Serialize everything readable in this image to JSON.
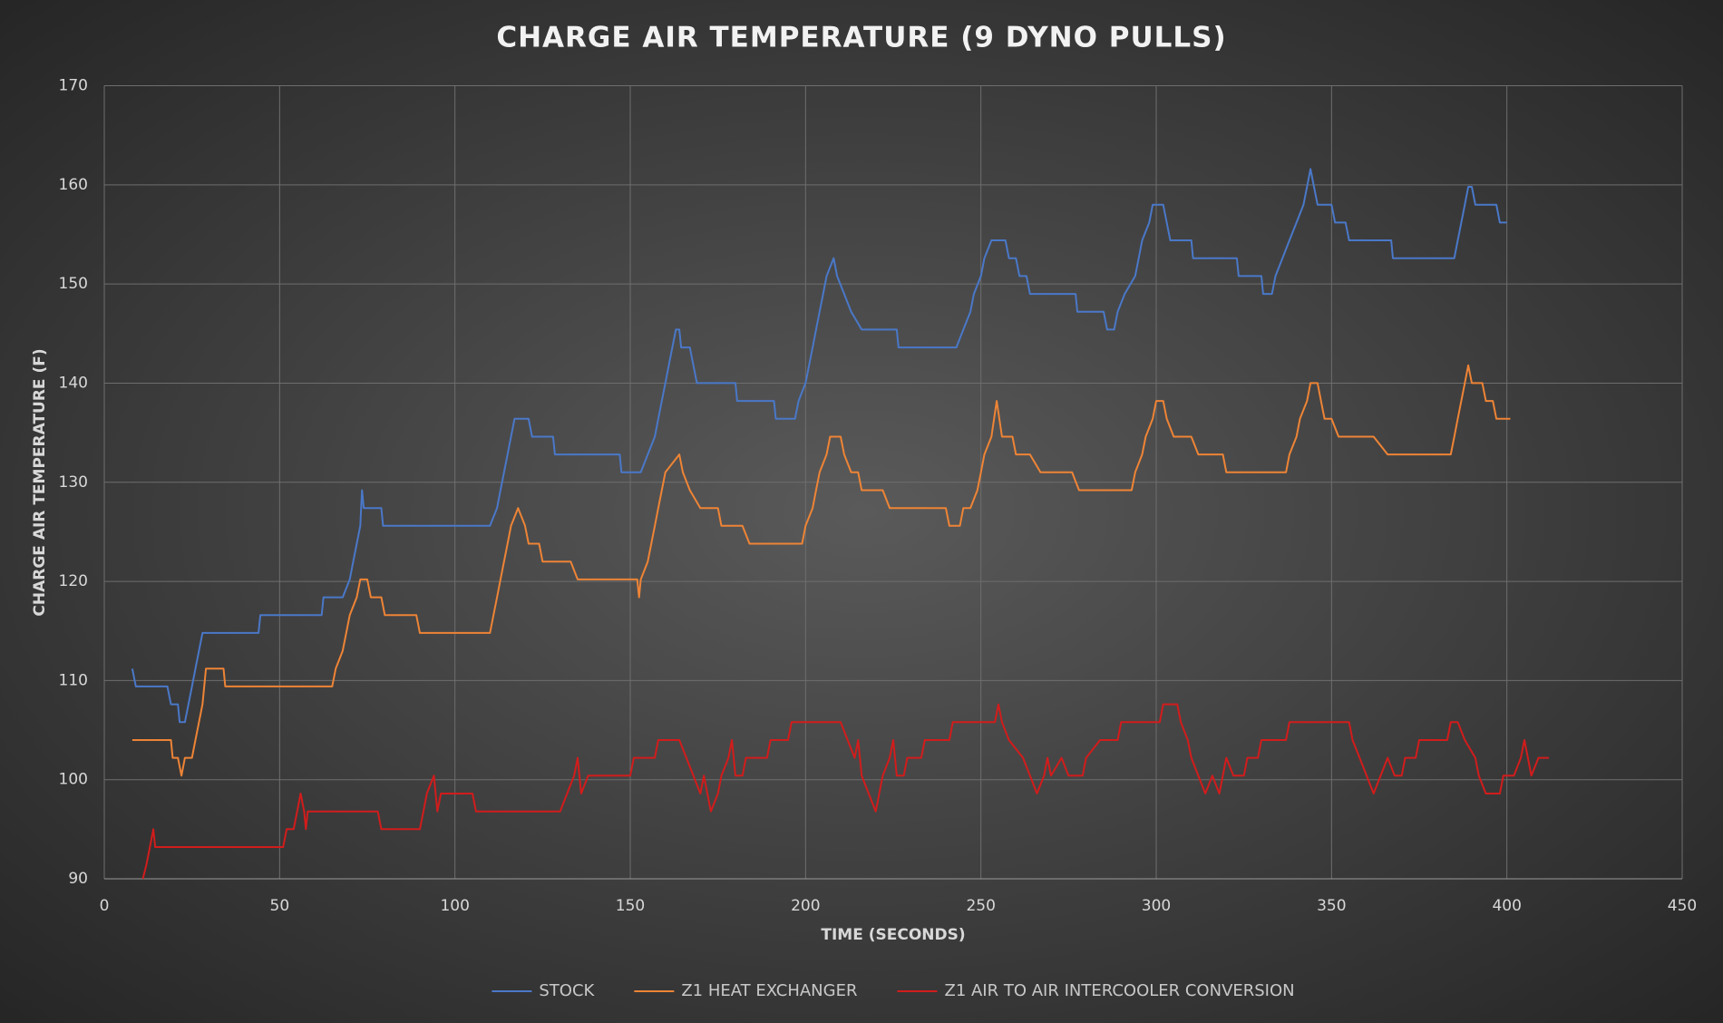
{
  "chart_data": {
    "type": "line",
    "title": "CHARGE AIR TEMPERATURE (9 DYNO PULLS)",
    "x_label": "TIME (SECONDS)",
    "y_label": "CHARGE AIR TEMPERATURE (F)",
    "xlim": [
      0,
      450
    ],
    "xticks": [
      0,
      50,
      100,
      150,
      200,
      250,
      300,
      350,
      400,
      450
    ],
    "ylim": [
      90,
      170
    ],
    "yticks": [
      90,
      100,
      110,
      120,
      130,
      140,
      150,
      160,
      170
    ],
    "grid": true,
    "legend": "bottom",
    "series": [
      {
        "name": "STOCK",
        "color": "#4a78c8",
        "x": [
          8,
          9,
          18,
          19,
          21,
          21.5,
          23,
          24,
          25,
          26,
          27,
          28,
          44,
          44.5,
          62,
          62.5,
          68,
          70,
          71,
          72,
          73,
          73.5,
          74,
          79,
          79.5,
          110,
          112,
          113,
          114,
          115,
          116,
          117,
          121,
          122,
          128,
          128.5,
          147,
          147.5,
          153,
          155,
          157,
          158,
          159,
          160,
          161,
          162,
          163,
          164,
          164.5,
          167,
          168,
          169,
          180,
          180.5,
          191,
          191.5,
          197,
          198,
          200,
          201,
          202,
          203,
          204,
          205,
          206,
          208,
          209,
          211,
          213,
          216,
          226,
          226.5,
          243,
          245,
          247,
          248,
          250,
          251,
          253,
          257,
          258,
          260,
          261,
          263,
          264,
          277,
          277.5,
          285,
          286,
          288,
          289,
          291,
          294,
          295,
          296,
          298,
          299,
          302,
          303,
          304,
          310,
          310.5,
          323,
          323.5,
          330,
          330.5,
          333,
          334,
          336,
          338,
          340,
          342,
          343,
          344,
          345,
          346,
          350,
          351,
          354,
          355,
          367,
          367.5,
          385,
          386,
          387,
          388,
          389,
          390,
          391,
          397,
          398,
          400
        ],
        "values": [
          111.2,
          109.4,
          109.4,
          107.6,
          107.6,
          105.8,
          105.8,
          107.6,
          109.4,
          111.2,
          113,
          114.8,
          114.8,
          116.6,
          116.6,
          118.4,
          118.4,
          120.2,
          122,
          123.8,
          125.6,
          129.2,
          127.4,
          127.4,
          125.6,
          125.6,
          127.4,
          129.2,
          131,
          132.8,
          134.6,
          136.4,
          136.4,
          134.6,
          134.6,
          132.8,
          132.8,
          131,
          131,
          132.8,
          134.6,
          136.4,
          138.2,
          140,
          141.8,
          143.6,
          145.4,
          145.4,
          143.6,
          143.6,
          141.8,
          140,
          140,
          138.2,
          138.2,
          136.4,
          136.4,
          138.2,
          140,
          141.8,
          143.6,
          145.4,
          147.2,
          149,
          150.8,
          152.6,
          150.8,
          149,
          147.2,
          145.4,
          145.4,
          143.6,
          143.6,
          145.4,
          147.2,
          149,
          150.8,
          152.6,
          154.4,
          154.4,
          152.6,
          152.6,
          150.8,
          150.8,
          149,
          149,
          147.2,
          147.2,
          145.4,
          145.4,
          147.2,
          149,
          150.8,
          152.6,
          154.4,
          156.2,
          158,
          158,
          156.2,
          154.4,
          154.4,
          152.6,
          152.6,
          150.8,
          150.8,
          149,
          149,
          150.8,
          152.6,
          154.4,
          156.2,
          158,
          159.8,
          161.6,
          159.8,
          158,
          158,
          156.2,
          156.2,
          154.4,
          154.4,
          152.6,
          152.6,
          154.4,
          156.2,
          158,
          159.8,
          159.8,
          158,
          158,
          156.2,
          156.2
        ]
      },
      {
        "name": "Z1 HEAT EXCHANGER",
        "color": "#ee8436",
        "x": [
          8,
          19,
          19.5,
          21,
          22,
          23,
          25,
          26,
          27,
          28,
          28.5,
          29,
          34,
          34.5,
          65,
          66,
          68,
          69,
          70,
          72,
          73,
          75,
          76,
          79,
          80,
          89,
          90,
          110,
          111,
          112,
          113,
          114,
          115,
          116,
          118,
          120,
          121,
          124,
          125,
          133,
          135,
          152,
          152.5,
          153,
          155,
          156,
          157,
          158,
          159,
          160,
          164,
          165,
          167,
          170,
          175,
          176,
          182,
          184,
          199,
          200,
          202,
          203,
          204,
          206,
          207,
          210,
          211,
          213,
          215,
          216,
          222,
          224,
          240,
          241,
          244,
          245,
          247,
          249,
          250,
          251,
          253,
          254.5,
          256,
          259,
          260,
          264,
          267,
          276,
          278,
          293,
          294,
          296,
          297,
          299,
          300,
          302,
          303,
          305,
          310,
          312,
          319,
          320,
          337,
          338,
          340,
          341,
          343,
          344,
          346,
          347,
          348,
          350,
          352,
          362,
          366,
          384,
          385,
          386,
          387,
          388,
          389,
          390,
          393,
          394,
          396,
          397,
          401
        ],
        "values": [
          104,
          104,
          102.2,
          102.2,
          100.4,
          102.2,
          102.2,
          104,
          105.8,
          107.6,
          109.4,
          111.2,
          111.2,
          109.4,
          109.4,
          111.2,
          113,
          114.8,
          116.6,
          118.4,
          120.2,
          120.2,
          118.4,
          118.4,
          116.6,
          116.6,
          114.8,
          114.8,
          116.6,
          118.4,
          120.2,
          122,
          123.8,
          125.6,
          127.4,
          125.6,
          123.8,
          123.8,
          122,
          122,
          120.2,
          120.2,
          118.4,
          120.2,
          122,
          123.8,
          125.6,
          127.4,
          129.2,
          131,
          132.8,
          131,
          129.2,
          127.4,
          127.4,
          125.6,
          125.6,
          123.8,
          123.8,
          125.6,
          127.4,
          129.2,
          131,
          132.8,
          134.6,
          134.6,
          132.8,
          131,
          131,
          129.2,
          129.2,
          127.4,
          127.4,
          125.6,
          125.6,
          127.4,
          127.4,
          129.2,
          131,
          132.8,
          134.6,
          138.2,
          134.6,
          134.6,
          132.8,
          132.8,
          131,
          131,
          129.2,
          129.2,
          131,
          132.8,
          134.6,
          136.4,
          138.2,
          138.2,
          136.4,
          134.6,
          134.6,
          132.8,
          132.8,
          131,
          131,
          132.8,
          134.6,
          136.4,
          138.2,
          140,
          140,
          138.2,
          136.4,
          136.4,
          134.6,
          134.6,
          132.8,
          132.8,
          134.6,
          136.4,
          138.2,
          140,
          141.8,
          140,
          140,
          138.2,
          138.2,
          136.4,
          136.4
        ]
      },
      {
        "name": "Z1 AIR TO AIR INTERCOOLER CONVERSION",
        "color": "#d21c1c",
        "x": [
          11,
          12,
          13,
          14,
          14.5,
          51,
          52,
          54,
          55,
          56,
          57,
          57.5,
          58,
          78,
          79,
          90,
          91,
          92,
          94,
          95,
          96,
          105,
          106,
          130,
          132,
          134,
          135,
          136,
          138,
          150,
          151,
          157,
          158,
          164,
          166,
          168,
          170,
          171,
          173,
          175,
          176,
          178,
          179,
          180,
          182,
          183,
          189,
          190,
          195,
          196,
          210,
          212,
          214,
          215,
          216,
          218,
          220,
          222,
          224,
          225,
          226,
          228,
          229,
          233,
          234,
          241,
          242,
          254,
          255,
          256,
          258,
          262,
          264,
          266,
          268,
          269,
          270,
          273,
          275,
          279,
          280,
          284,
          289,
          290,
          301,
          302,
          306,
          307,
          309,
          310,
          312,
          314,
          316,
          318,
          320,
          322,
          325,
          326,
          329,
          330,
          337,
          338,
          355,
          356,
          358,
          360,
          362,
          364,
          366,
          368,
          370,
          371,
          374,
          375,
          383,
          384,
          386,
          388,
          391,
          392,
          394,
          398,
          399,
          402,
          404,
          405,
          407,
          409,
          412
        ],
        "values": [
          90,
          91.4,
          93.2,
          95,
          93.2,
          93.2,
          95,
          95,
          96.8,
          98.6,
          96.8,
          95,
          96.8,
          96.8,
          95,
          95,
          96.8,
          98.6,
          100.4,
          96.8,
          98.6,
          98.6,
          96.8,
          96.8,
          98.6,
          100.4,
          102.2,
          98.6,
          100.4,
          100.4,
          102.2,
          102.2,
          104,
          104,
          102.2,
          100.4,
          98.6,
          100.4,
          96.8,
          98.6,
          100.4,
          102.2,
          104,
          100.4,
          100.4,
          102.2,
          102.2,
          104,
          104,
          105.8,
          105.8,
          104,
          102.2,
          104,
          100.4,
          98.6,
          96.8,
          100.4,
          102.2,
          104,
          100.4,
          100.4,
          102.2,
          102.2,
          104,
          104,
          105.8,
          105.8,
          107.6,
          105.8,
          104,
          102.2,
          100.4,
          98.6,
          100.4,
          102.2,
          100.4,
          102.2,
          100.4,
          100.4,
          102.2,
          104,
          104,
          105.8,
          105.8,
          107.6,
          107.6,
          105.8,
          104,
          102.2,
          100.4,
          98.6,
          100.4,
          98.6,
          102.2,
          100.4,
          100.4,
          102.2,
          102.2,
          104,
          104,
          105.8,
          105.8,
          104,
          102.2,
          100.4,
          98.6,
          100.4,
          102.2,
          100.4,
          100.4,
          102.2,
          102.2,
          104,
          104,
          105.8,
          105.8,
          104,
          102.2,
          100.4,
          98.6,
          98.6,
          100.4,
          100.4,
          102.2,
          104,
          100.4,
          102.2,
          102.2
        ]
      }
    ]
  }
}
